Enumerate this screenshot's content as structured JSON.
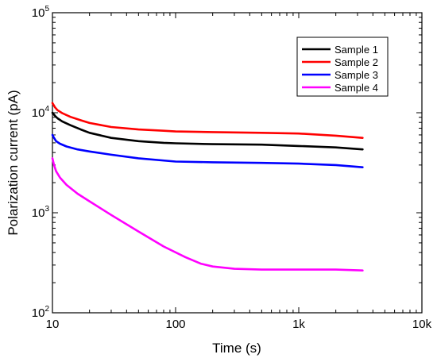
{
  "chart_data": {
    "type": "line",
    "title": "",
    "xlabel": "Time (s)",
    "ylabel": "Polarization current (pA)",
    "x_scale": "log",
    "y_scale": "log",
    "xlim": [
      10,
      10000
    ],
    "ylim": [
      100,
      100000
    ],
    "x_ticks": [
      {
        "value": 10,
        "label": "10"
      },
      {
        "value": 100,
        "label": "100"
      },
      {
        "value": 1000,
        "label": "1k"
      },
      {
        "value": 10000,
        "label": "10k"
      }
    ],
    "y_ticks": [
      {
        "value": 100,
        "base": "10",
        "exp": "2"
      },
      {
        "value": 1000,
        "base": "10",
        "exp": "3"
      },
      {
        "value": 10000,
        "base": "10",
        "exp": "4"
      },
      {
        "value": 100000,
        "base": "10",
        "exp": "5"
      }
    ],
    "grid": false,
    "legend_position": "top-right",
    "series": [
      {
        "name": "Sample 1",
        "color": "#000000",
        "x": [
          10,
          10.5,
          11,
          12,
          14,
          17,
          20,
          30,
          50,
          80,
          100,
          200,
          500,
          1000,
          2000,
          3300
        ],
        "y": [
          10000,
          9300,
          8800,
          8200,
          7500,
          6800,
          6300,
          5600,
          5200,
          5000,
          4950,
          4850,
          4800,
          4650,
          4500,
          4300
        ]
      },
      {
        "name": "Sample 2",
        "color": "#ff0000",
        "x": [
          10,
          10.5,
          11,
          12,
          14,
          17,
          20,
          30,
          50,
          80,
          100,
          200,
          500,
          1000,
          2000,
          3300
        ],
        "y": [
          12500,
          11300,
          10600,
          9900,
          9100,
          8400,
          7900,
          7200,
          6800,
          6600,
          6500,
          6400,
          6300,
          6200,
          5900,
          5600
        ]
      },
      {
        "name": "Sample 3",
        "color": "#0000ff",
        "x": [
          10,
          10.3,
          10.7,
          11.5,
          13,
          16,
          20,
          30,
          50,
          100,
          200,
          500,
          1000,
          2000,
          3300
        ],
        "y": [
          6000,
          5600,
          5200,
          4900,
          4600,
          4300,
          4100,
          3800,
          3500,
          3250,
          3200,
          3150,
          3100,
          3000,
          2850
        ]
      },
      {
        "name": "Sample 4",
        "color": "#ff00ff",
        "x": [
          10,
          10.3,
          10.7,
          11.5,
          13,
          16,
          20,
          30,
          50,
          80,
          120,
          160,
          200,
          300,
          500,
          1000,
          2000,
          3300
        ],
        "y": [
          3500,
          3000,
          2600,
          2250,
          1900,
          1550,
          1300,
          950,
          650,
          460,
          360,
          310,
          290,
          275,
          270,
          270,
          270,
          265
        ]
      }
    ]
  }
}
